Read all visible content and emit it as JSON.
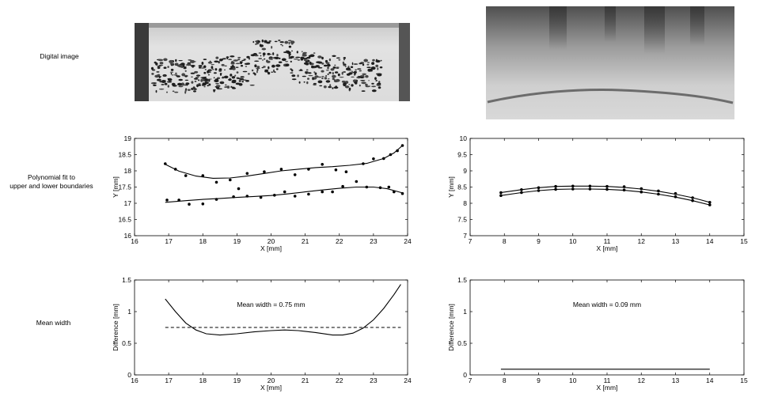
{
  "row_labels": {
    "digital_image": "Digital image",
    "polynomial_fit": "Polynomial fit to\nupper and lower boundaries",
    "mean_width": "Mean width"
  },
  "chart_data": [
    {
      "type": "scatter",
      "panel": "left-fit",
      "xlabel": "X [mm]",
      "ylabel": "Y [mm]",
      "xlim": [
        16,
        24
      ],
      "ylim": [
        16,
        19
      ],
      "xticks": [
        16,
        17,
        18,
        19,
        20,
        21,
        22,
        23,
        24
      ],
      "yticks": [
        16,
        16.5,
        17,
        17.5,
        18,
        18.5,
        19
      ],
      "series": [
        {
          "points": [
            [
              16.9,
              18.22
            ],
            [
              17.2,
              18.05
            ],
            [
              17.5,
              17.85
            ],
            [
              18.0,
              17.85
            ],
            [
              18.4,
              17.65
            ],
            [
              18.8,
              17.72
            ],
            [
              19.3,
              17.92
            ],
            [
              19.8,
              17.97
            ],
            [
              20.3,
              18.05
            ],
            [
              20.7,
              17.88
            ],
            [
              21.1,
              18.05
            ],
            [
              21.5,
              18.2
            ],
            [
              21.9,
              18.03
            ],
            [
              22.2,
              17.97
            ],
            [
              22.7,
              18.22
            ],
            [
              23.0,
              18.37
            ],
            [
              23.3,
              18.38
            ],
            [
              23.5,
              18.5
            ],
            [
              23.7,
              18.62
            ],
            [
              23.85,
              18.78
            ]
          ],
          "fit": [
            [
              16.9,
              18.2
            ],
            [
              17.3,
              17.99
            ],
            [
              17.8,
              17.84
            ],
            [
              18.3,
              17.77
            ],
            [
              18.8,
              17.78
            ],
            [
              19.3,
              17.84
            ],
            [
              19.8,
              17.92
            ],
            [
              20.3,
              18.0
            ],
            [
              20.8,
              18.05
            ],
            [
              21.3,
              18.1
            ],
            [
              21.8,
              18.13
            ],
            [
              22.3,
              18.17
            ],
            [
              22.8,
              18.23
            ],
            [
              23.3,
              18.38
            ],
            [
              23.6,
              18.55
            ],
            [
              23.85,
              18.78
            ]
          ]
        },
        {
          "points": [
            [
              16.95,
              17.1
            ],
            [
              17.3,
              17.1
            ],
            [
              17.6,
              16.97
            ],
            [
              18.0,
              16.98
            ],
            [
              18.4,
              17.12
            ],
            [
              18.9,
              17.2
            ],
            [
              19.05,
              17.45
            ],
            [
              19.3,
              17.22
            ],
            [
              19.7,
              17.18
            ],
            [
              20.1,
              17.25
            ],
            [
              20.4,
              17.35
            ],
            [
              20.7,
              17.22
            ],
            [
              21.1,
              17.28
            ],
            [
              21.5,
              17.35
            ],
            [
              21.8,
              17.35
            ],
            [
              22.1,
              17.52
            ],
            [
              22.5,
              17.67
            ],
            [
              22.8,
              17.5
            ],
            [
              23.2,
              17.48
            ],
            [
              23.45,
              17.5
            ],
            [
              23.6,
              17.35
            ],
            [
              23.85,
              17.3
            ]
          ],
          "fit": [
            [
              16.9,
              17.03
            ],
            [
              17.5,
              17.08
            ],
            [
              18.0,
              17.12
            ],
            [
              18.5,
              17.15
            ],
            [
              19.0,
              17.18
            ],
            [
              19.5,
              17.21
            ],
            [
              20.0,
              17.24
            ],
            [
              20.5,
              17.29
            ],
            [
              21.0,
              17.35
            ],
            [
              21.5,
              17.41
            ],
            [
              22.0,
              17.46
            ],
            [
              22.5,
              17.5
            ],
            [
              23.0,
              17.5
            ],
            [
              23.4,
              17.45
            ],
            [
              23.85,
              17.32
            ]
          ]
        }
      ]
    },
    {
      "type": "scatter",
      "panel": "right-fit",
      "xlabel": "X [mm]",
      "ylabel": "Y [mm]",
      "xlim": [
        7,
        15
      ],
      "ylim": [
        7,
        10
      ],
      "xticks": [
        7,
        8,
        9,
        10,
        11,
        12,
        13,
        14,
        15
      ],
      "yticks": [
        7,
        7.5,
        8,
        8.5,
        9,
        9.5,
        10
      ],
      "series": [
        {
          "points": [
            [
              7.9,
              8.33
            ],
            [
              8.5,
              8.42
            ],
            [
              9.0,
              8.48
            ],
            [
              9.5,
              8.52
            ],
            [
              10.0,
              8.53
            ],
            [
              10.5,
              8.53
            ],
            [
              11.0,
              8.52
            ],
            [
              11.5,
              8.51
            ],
            [
              12.0,
              8.45
            ],
            [
              12.5,
              8.38
            ],
            [
              13.0,
              8.3
            ],
            [
              13.5,
              8.17
            ],
            [
              14.0,
              8.03
            ]
          ],
          "fit": [
            [
              7.9,
              8.33
            ],
            [
              8.5,
              8.42
            ],
            [
              9.0,
              8.48
            ],
            [
              9.5,
              8.52
            ],
            [
              10.0,
              8.53
            ],
            [
              10.5,
              8.53
            ],
            [
              11.0,
              8.52
            ],
            [
              11.5,
              8.49
            ],
            [
              12.0,
              8.44
            ],
            [
              12.5,
              8.37
            ],
            [
              13.0,
              8.28
            ],
            [
              13.5,
              8.17
            ],
            [
              14.0,
              8.03
            ]
          ]
        },
        {
          "points": [
            [
              7.9,
              8.24
            ],
            [
              8.5,
              8.33
            ],
            [
              9.0,
              8.39
            ],
            [
              9.5,
              8.43
            ],
            [
              10.0,
              8.44
            ],
            [
              10.5,
              8.44
            ],
            [
              11.0,
              8.43
            ],
            [
              11.5,
              8.41
            ],
            [
              12.0,
              8.35
            ],
            [
              12.5,
              8.28
            ],
            [
              13.0,
              8.2
            ],
            [
              13.5,
              8.08
            ],
            [
              14.0,
              7.95
            ]
          ],
          "fit": [
            [
              7.9,
              8.24
            ],
            [
              8.5,
              8.33
            ],
            [
              9.0,
              8.39
            ],
            [
              9.5,
              8.43
            ],
            [
              10.0,
              8.44
            ],
            [
              10.5,
              8.44
            ],
            [
              11.0,
              8.43
            ],
            [
              11.5,
              8.4
            ],
            [
              12.0,
              8.35
            ],
            [
              12.5,
              8.28
            ],
            [
              13.0,
              8.19
            ],
            [
              13.5,
              8.08
            ],
            [
              14.0,
              7.95
            ]
          ]
        }
      ]
    },
    {
      "type": "line",
      "panel": "left-width",
      "xlabel": "X [mm]",
      "ylabel": "Difference [mm]",
      "annotation": "Mean width = 0.75 mm",
      "xlim": [
        16,
        24
      ],
      "ylim": [
        0,
        1.5
      ],
      "xticks": [
        16,
        17,
        18,
        19,
        20,
        21,
        22,
        23,
        24
      ],
      "yticks": [
        0,
        0.5,
        1,
        1.5
      ],
      "curve": [
        [
          16.9,
          1.2
        ],
        [
          17.2,
          1.0
        ],
        [
          17.5,
          0.82
        ],
        [
          17.8,
          0.71
        ],
        [
          18.1,
          0.65
        ],
        [
          18.5,
          0.63
        ],
        [
          19.0,
          0.65
        ],
        [
          19.5,
          0.68
        ],
        [
          20.0,
          0.7
        ],
        [
          20.4,
          0.71
        ],
        [
          20.8,
          0.7
        ],
        [
          21.3,
          0.67
        ],
        [
          21.8,
          0.63
        ],
        [
          22.1,
          0.63
        ],
        [
          22.4,
          0.66
        ],
        [
          22.7,
          0.74
        ],
        [
          23.0,
          0.87
        ],
        [
          23.3,
          1.05
        ],
        [
          23.6,
          1.27
        ],
        [
          23.8,
          1.43
        ]
      ],
      "mean_line": {
        "x": [
          16.9,
          23.8
        ],
        "y": 0.75
      }
    },
    {
      "type": "line",
      "panel": "right-width",
      "xlabel": "X [mm]",
      "ylabel": "Difference [mm]",
      "annotation": "Mean width = 0.09 mm",
      "xlim": [
        7,
        15
      ],
      "ylim": [
        0,
        1.5
      ],
      "xticks": [
        7,
        8,
        9,
        10,
        11,
        12,
        13,
        14,
        15
      ],
      "yticks": [
        0,
        0.5,
        1,
        1.5
      ],
      "curve": [
        [
          7.9,
          0.09
        ],
        [
          14.0,
          0.09
        ]
      ],
      "mean_line": {
        "x": [
          7.9,
          14.0
        ],
        "y": 0.09
      }
    }
  ]
}
